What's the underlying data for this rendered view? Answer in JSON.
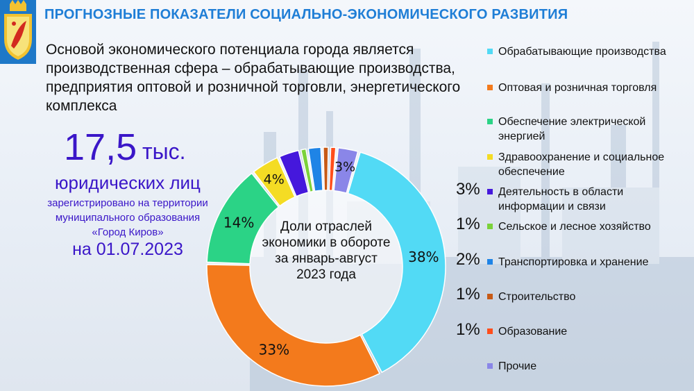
{
  "header": {
    "title": "ПРОГНОЗНЫЕ ПОКАЗАТЕЛИ СОЦИАЛЬНО-ЭКОНОМИЧЕСКОГО РАЗВИТИЯ"
  },
  "intro": "Основой экономического потенциала города является производственная сфера – обрабатывающие производства, предприятия оптовой и розничной торговли, энергетического комплекса",
  "stat": {
    "value": "17,5",
    "unit": "тыс.",
    "noun": "юридических лиц",
    "description": "зарегистрировано на территории муниципального образования «Город Киров»",
    "date": "на 01.07.2023"
  },
  "colors": {
    "title": "#1f7ed6",
    "stat": "#3a16c8",
    "crest_bg": "#1e78c8"
  },
  "chart_data": {
    "type": "pie",
    "donut": true,
    "center_label": "Доли отраслей экономики в обороте за январь-август 2023 года",
    "legend_position": "right",
    "slices": [
      {
        "label": "Обрабатывающие производства",
        "value": 38,
        "value_label": "38%",
        "color": "#52daf5"
      },
      {
        "label": "Оптовая и розничная торговля",
        "value": 33,
        "value_label": "33%",
        "color": "#f37a1c"
      },
      {
        "label": "Обеспечение электрической энергией",
        "value": 14,
        "value_label": "14%",
        "color": "#2bd386"
      },
      {
        "label": "Здравоохранение и социальное обеспечение",
        "value": 4,
        "value_label": "4%",
        "color": "#f4dc24"
      },
      {
        "label": "Деятельность в области информации и связи",
        "value": 3,
        "value_label": "3%",
        "color": "#4518dc"
      },
      {
        "label": "Сельское и лесное хозяйство",
        "value": 1,
        "value_label": "1%",
        "color": "#7bd23a"
      },
      {
        "label": "Транспортировка и хранение",
        "value": 2,
        "value_label": "2%",
        "color": "#1f84e6"
      },
      {
        "label": "Строительство",
        "value": 1,
        "value_label": "1%",
        "color": "#c75a16"
      },
      {
        "label": "Образование",
        "value": 1,
        "value_label": "1%",
        "color": "#ff4e1c"
      },
      {
        "label": "Прочие",
        "value": 3,
        "value_label": "3%",
        "color": "#8a86e8"
      }
    ]
  }
}
